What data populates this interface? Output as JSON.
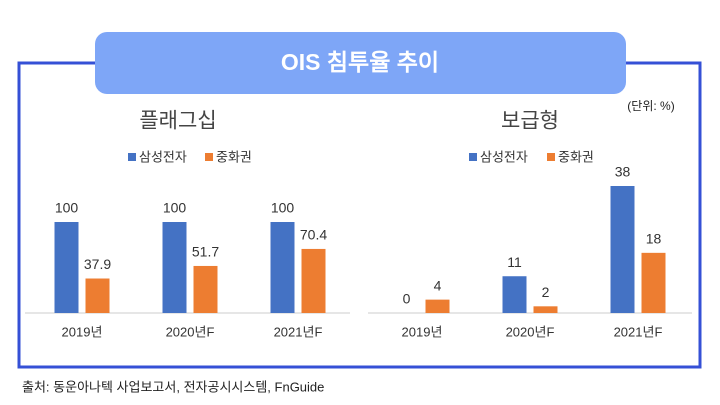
{
  "title": "OIS 침투율 추이",
  "unit": "(단위: %)",
  "source": "출처: 동운아나텍 사업보고서, 전자공시시스템, FnGuide",
  "chart_data": [
    {
      "type": "bar",
      "title": "플래그십",
      "categories": [
        "2019년",
        "2020년F",
        "2021년F"
      ],
      "series": [
        {
          "name": "삼성전자",
          "color": "#4472c4",
          "values": [
            100,
            100,
            100
          ]
        },
        {
          "name": "중화권",
          "color": "#ed7d31",
          "values": [
            37.9,
            51.7,
            70.4
          ]
        }
      ]
    },
    {
      "type": "bar",
      "title": "보급형",
      "categories": [
        "2019년",
        "2020년F",
        "2021년F"
      ],
      "series": [
        {
          "name": "삼성전자",
          "color": "#4472c4",
          "values": [
            0,
            11,
            38
          ]
        },
        {
          "name": "중화권",
          "color": "#ed7d31",
          "values": [
            4,
            2,
            18
          ]
        }
      ]
    }
  ]
}
